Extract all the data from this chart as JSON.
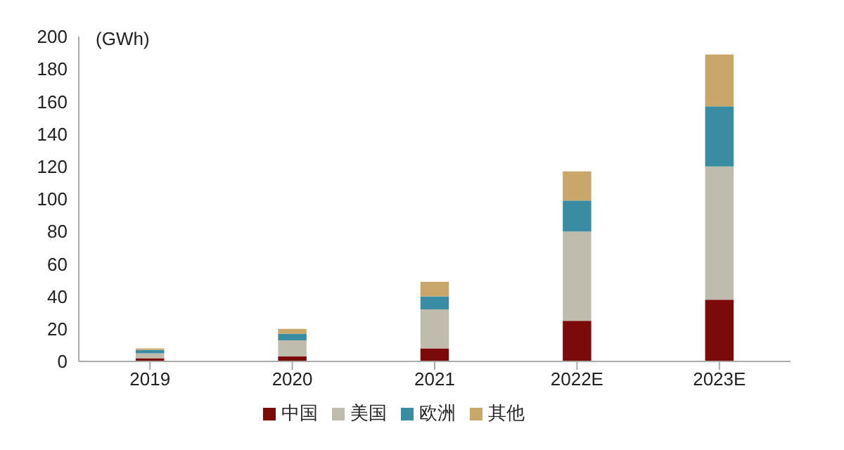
{
  "chart_data": {
    "type": "bar",
    "ylabel": "(GWh)",
    "categories": [
      "2019",
      "2020",
      "2021",
      "2022E",
      "2023E"
    ],
    "stacked": true,
    "series": [
      {
        "name": "中国",
        "color": "#7b0a0a",
        "values": [
          2,
          3,
          8,
          25,
          38
        ]
      },
      {
        "name": "美国",
        "color": "#bfbcae",
        "values": [
          3,
          10,
          24,
          55,
          82
        ]
      },
      {
        "name": "欧洲",
        "color": "#3a8ca3",
        "values": [
          2,
          4,
          8,
          19,
          37
        ]
      },
      {
        "name": "其他",
        "color": "#c9a76a",
        "values": [
          1,
          3,
          9,
          18,
          32
        ]
      }
    ],
    "ylim": [
      0,
      200
    ],
    "yticks": [
      0,
      20,
      40,
      60,
      80,
      100,
      120,
      140,
      160,
      180,
      200
    ],
    "grid": false,
    "legend": "bottom"
  }
}
